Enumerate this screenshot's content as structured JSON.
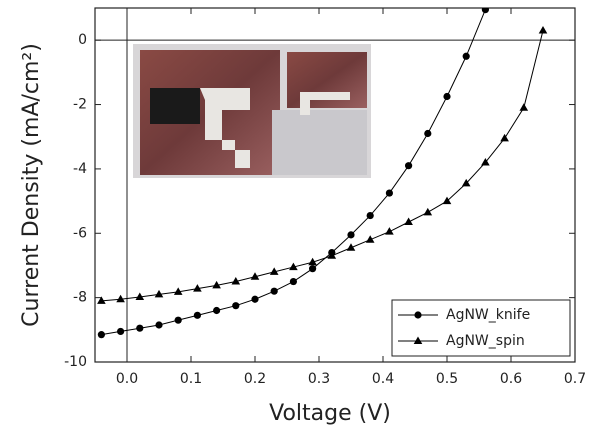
{
  "chart_data": {
    "type": "line",
    "x_label": "Voltage (V)",
    "y_label": "Current Density (mA/cm²)",
    "xlim": [
      -0.05,
      0.7
    ],
    "ylim": [
      -10,
      1
    ],
    "xticks": [
      {
        "value": 0,
        "label": "0.0"
      },
      0.1,
      0.2,
      0.3,
      0.4,
      0.5,
      0.6,
      0.7
    ],
    "yticks": [
      -10,
      -8,
      -6,
      -4,
      -2,
      0
    ],
    "zero_lines": true,
    "legend": "lower right",
    "x": [
      -0.04,
      -0.01,
      0.02,
      0.05,
      0.08,
      0.11,
      0.14,
      0.17,
      0.2,
      0.23,
      0.26,
      0.29,
      0.32,
      0.35,
      0.38,
      0.41,
      0.44,
      0.47,
      0.5,
      0.53,
      0.56,
      0.59,
      0.62,
      0.65
    ],
    "series": [
      {
        "name": "AgNW_knife",
        "color": "#000000",
        "marker": "circle",
        "values": [
          -9.15,
          -9.05,
          -8.95,
          -8.85,
          -8.7,
          -8.55,
          -8.4,
          -8.25,
          -8.05,
          -7.8,
          -7.5,
          -7.1,
          -6.6,
          -6.05,
          -5.45,
          -4.75,
          -3.9,
          -2.9,
          -1.75,
          -0.5,
          0.95,
          null,
          null,
          null
        ]
      },
      {
        "name": "AgNW_spin",
        "color": "#000000",
        "marker": "triangle",
        "values": [
          -8.1,
          -8.05,
          -7.98,
          -7.9,
          -7.82,
          -7.72,
          -7.62,
          -7.5,
          -7.35,
          -7.2,
          -7.05,
          -6.9,
          -6.7,
          -6.45,
          -6.2,
          -5.95,
          -5.65,
          -5.35,
          -5.0,
          -4.45,
          -3.8,
          -3.05,
          -2.1,
          0.3
        ]
      }
    ]
  }
}
